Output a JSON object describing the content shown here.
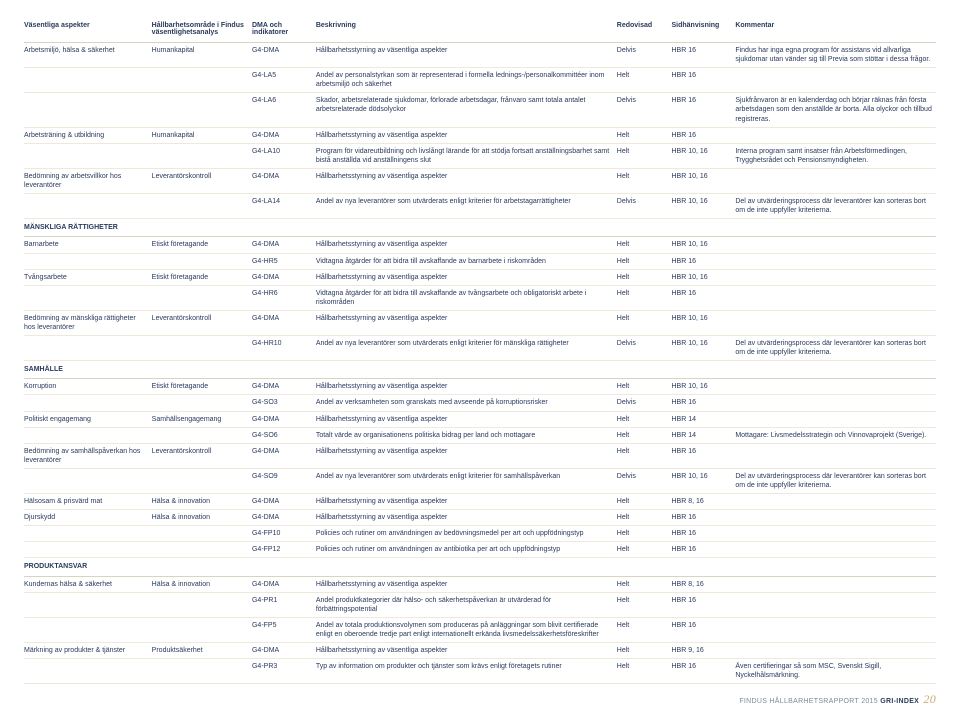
{
  "headers": [
    "Väsentliga aspekter",
    "Hållbarhetsområde i Findus väsentlighetsanalys",
    "DMA och indikatorer",
    "Beskrivning",
    "Redovisad",
    "Sidhänvisning",
    "Kommentar"
  ],
  "rows": [
    {
      "c": [
        "Arbetsmiljö, hälsa & säkerhet",
        "Humankapital",
        "G4-DMA",
        "Hållbarhetsstyrning av väsentliga aspekter",
        "Delvis",
        "HBR 16",
        "Findus har inga egna program för assistans vid allvarliga sjukdomar utan vänder sig till Previa som stöttar i dessa frågor."
      ]
    },
    {
      "c": [
        "",
        "",
        "G4-LA5",
        "Andel av personalstyrkan som är representerad i formella lednings-/personalkommittéer inom arbetsmiljö och säkerhet",
        "Helt",
        "HBR 16",
        ""
      ]
    },
    {
      "c": [
        "",
        "",
        "G4-LA6",
        "Skador, arbetsrelaterade sjukdomar, förlorade arbetsdagar, frånvaro samt totala antalet arbetsrelaterade dödsolyckor",
        "Delvis",
        "HBR 16",
        "Sjukfrånvaron är en kalenderdag och börjar räknas från första arbetsdagen som den anställde är borta. Alla olyckor och tillbud registreras."
      ]
    },
    {
      "c": [
        "Arbetsträning & utbildning",
        "Humankapital",
        "G4-DMA",
        "Hållbarhetsstyrning av väsentliga aspekter",
        "Helt",
        "HBR 16",
        ""
      ]
    },
    {
      "c": [
        "",
        "",
        "G4-LA10",
        "Program för vidareutbildning och livslångt lärande för att stödja fortsatt anställningsbarhet samt bistå anställda vid anställningens slut",
        "Helt",
        "HBR 10, 16",
        "Interna program samt insatser från Arbetsförmedlingen, Trygghetsrådet och Pensionsmyndigheten."
      ]
    },
    {
      "c": [
        "Bedömning av arbetsvillkor hos leverantörer",
        "Leverantörskontroll",
        "G4-DMA",
        "Hållbarhetsstyrning av väsentliga aspekter",
        "Helt",
        "HBR 10, 16",
        ""
      ]
    },
    {
      "c": [
        "",
        "",
        "G4-LA14",
        "Andel av nya leverantörer som utvärderats enligt kriterier för arbetstagarrättigheter",
        "Delvis",
        "HBR 10, 16",
        "Del av utvärderingsprocess där leverantörer kan sorteras bort om de inte uppfyller kriterierna."
      ]
    },
    {
      "section": "MÄNSKLIGA RÄTTIGHETER"
    },
    {
      "c": [
        "Barnarbete",
        "Etiskt företagande",
        "G4-DMA",
        "Hållbarhetsstyrning av väsentliga aspekter",
        "Helt",
        "HBR 10, 16",
        ""
      ]
    },
    {
      "c": [
        "",
        "",
        "G4-HR5",
        "Vidtagna åtgärder för att bidra till avskaffande av barnarbete i riskområden",
        "Helt",
        "HBR 16",
        ""
      ]
    },
    {
      "c": [
        "Tvångsarbete",
        "Etiskt företagande",
        "G4-DMA",
        "Hållbarhetsstyrning av väsentliga aspekter",
        "Helt",
        "HBR 10, 16",
        ""
      ]
    },
    {
      "c": [
        "",
        "",
        "G4-HR6",
        "Vidtagna åtgärder för att bidra till avskaffande av tvångsarbete och obligatoriskt arbete i riskområden",
        "Helt",
        "HBR 16",
        ""
      ]
    },
    {
      "c": [
        "Bedömning av mänskliga rättigheter hos leverantörer",
        "Leverantörskontroll",
        "G4-DMA",
        "Hållbarhetsstyrning av väsentliga aspekter",
        "Helt",
        "HBR 10, 16",
        ""
      ]
    },
    {
      "c": [
        "",
        "",
        "G4-HR10",
        "Andel av nya leverantörer som utvärderats enligt kriterier för mänskliga rättigheter",
        "Delvis",
        "HBR 10, 16",
        "Del av utvärderingsprocess där leverantörer kan sorteras bort om de inte uppfyller kriterierna."
      ]
    },
    {
      "section": "SAMHÄLLE"
    },
    {
      "c": [
        "Korruption",
        "Etiskt företagande",
        "G4-DMA",
        "Hållbarhetsstyrning av väsentliga aspekter",
        "Helt",
        "HBR 10, 16",
        ""
      ]
    },
    {
      "c": [
        "",
        "",
        "G4-SO3",
        "Andel av verksamheten som granskats med avseende på korruptionsrisker",
        "Delvis",
        "HBR 16",
        ""
      ]
    },
    {
      "c": [
        "Politiskt engagemang",
        "Samhällsengagemang",
        "G4-DMA",
        "Hållbarhetsstyrning av väsentliga aspekter",
        "Helt",
        "HBR 14",
        ""
      ]
    },
    {
      "c": [
        "",
        "",
        "G4-SO6",
        "Totalt värde av organisationens politiska bidrag per land och mottagare",
        "Helt",
        "HBR 14",
        "Mottagare: Livsmedelsstrategin och Vinnovaprojekt (Sverige)."
      ]
    },
    {
      "c": [
        "Bedömning av samhällspåverkan hos leverantörer",
        "Leverantörskontroll",
        "G4-DMA",
        "Hållbarhetsstyrning av väsentliga aspekter",
        "Helt",
        "HBR 16",
        ""
      ]
    },
    {
      "c": [
        "",
        "",
        "G4-SO9",
        "Andel av nya leverantörer som utvärderats enligt kriterier för samhällspåverkan",
        "Delvis",
        "HBR 10, 16",
        "Del av utvärderingsprocess där leverantörer kan sorteras bort om de inte uppfyller kriterierna."
      ]
    },
    {
      "c": [
        "Hälsosam & prisvärd mat",
        "Hälsa & innovation",
        "G4-DMA",
        "Hållbarhetsstyrning av väsentliga aspekter",
        "Helt",
        "HBR 8, 16",
        ""
      ]
    },
    {
      "c": [
        "Djurskydd",
        "Hälsa & innovation",
        "G4-DMA",
        "Hållbarhetsstyrning av väsentliga aspekter",
        "Helt",
        "HBR 16",
        ""
      ]
    },
    {
      "c": [
        "",
        "",
        "G4-FP10",
        "Policies och rutiner om användningen av bedövningsmedel per art och uppfödningstyp",
        "Helt",
        "HBR 16",
        ""
      ]
    },
    {
      "c": [
        "",
        "",
        "G4-FP12",
        "Policies och rutiner om användningen av antibiotika per art och uppfödningstyp",
        "Helt",
        "HBR 16",
        ""
      ]
    },
    {
      "section": "PRODUKTANSVAR"
    },
    {
      "c": [
        "Kundernas hälsa & säkerhet",
        "Hälsa & innovation",
        "G4-DMA",
        "Hållbarhetsstyrning av väsentliga aspekter",
        "Helt",
        "HBR 8, 16",
        ""
      ]
    },
    {
      "c": [
        "",
        "",
        "G4-PR1",
        "Andel produktkategorier där hälso- och säkerhetspåverkan är utvärderad för förbättringspotential",
        "Helt",
        "HBR 16",
        ""
      ]
    },
    {
      "c": [
        "",
        "",
        "G4-FP5",
        "Andel av totala produktionsvolymen som produceras på anläggningar som blivit certifierade enligt en oberoende tredje part enligt internationellt erkända livsmedelssäkerhetsföreskrifter",
        "Helt",
        "HBR 16",
        ""
      ]
    },
    {
      "c": [
        "Märkning av produkter & tjänster",
        "Produktsäkerhet",
        "G4-DMA",
        "Hållbarhetsstyrning av väsentliga aspekter",
        "Helt",
        "HBR 9, 16",
        ""
      ]
    },
    {
      "c": [
        "",
        "",
        "G4-PR3",
        "Typ av information om produkter och tjänster som krävs enligt företagets rutiner",
        "Helt",
        "HBR 16",
        "Även certifieringar så som MSC, Svenskt Sigill, Nyckelhålsmärkning."
      ]
    }
  ],
  "footer": {
    "text": "FINDUS HÅLLBARHETSRAPPORT 2015",
    "gri": "GRI-INDEX",
    "page": "20"
  }
}
